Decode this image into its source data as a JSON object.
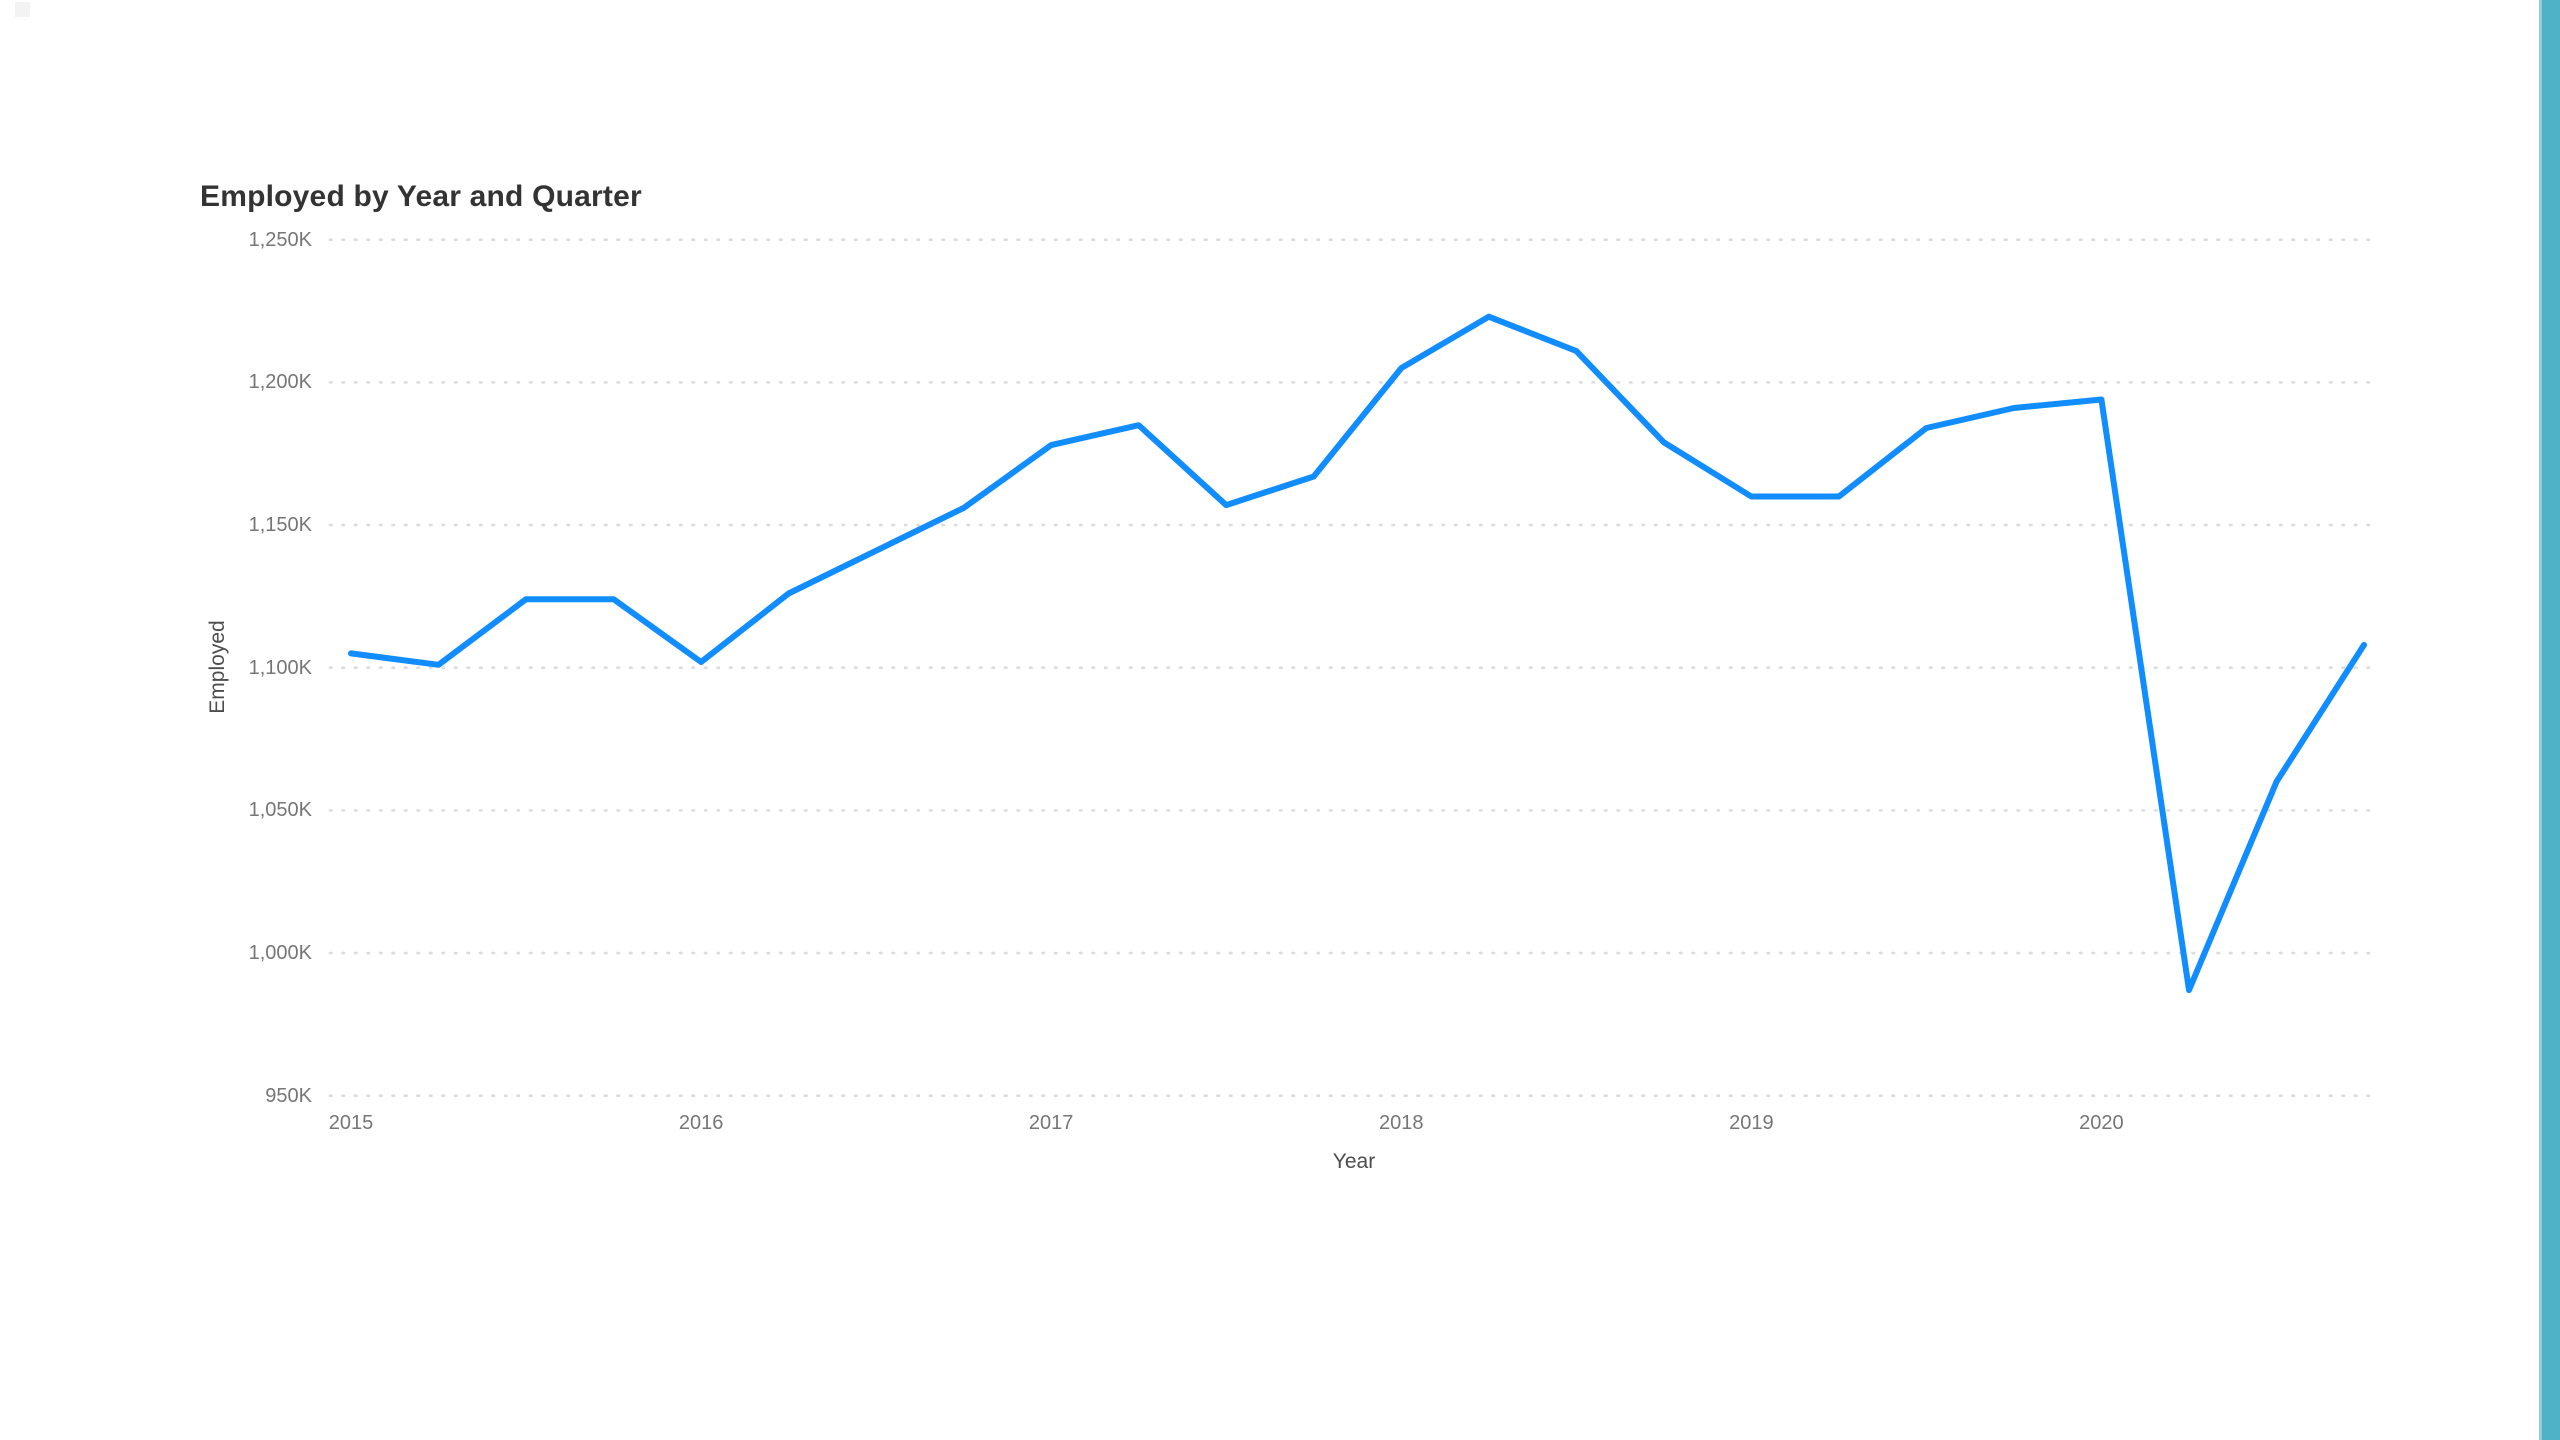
{
  "page": {
    "background": "#ffffff",
    "right_accent_bar_color": "#4fb2c6",
    "corner_artifact_color": "#f4f3f3"
  },
  "chart": {
    "title": "Employed by Year and Quarter",
    "x_axis_title": "Year",
    "y_axis_title": "Employed"
  },
  "chart_data": {
    "type": "line",
    "title": "Employed by Year and Quarter",
    "xlabel": "Year",
    "ylabel": "Employed",
    "units": "thousands (K)",
    "legend": "none",
    "grid": "horizontal-dotted",
    "grid_color": "#dcdcdc",
    "line_color": "#118DFF",
    "line_width": 6,
    "categories": [
      "2015 Q1",
      "2015 Q2",
      "2015 Q3",
      "2015 Q4",
      "2016 Q1",
      "2016 Q2",
      "2016 Q3",
      "2016 Q4",
      "2017 Q1",
      "2017 Q2",
      "2017 Q3",
      "2017 Q4",
      "2018 Q1",
      "2018 Q2",
      "2018 Q3",
      "2018 Q4",
      "2019 Q1",
      "2019 Q2",
      "2019 Q3",
      "2019 Q4",
      "2020 Q1",
      "2020 Q2",
      "2020 Q3",
      "2020 Q4"
    ],
    "values_k": [
      1105,
      1101,
      1124,
      1124,
      1102,
      1126,
      1141,
      1156,
      1178,
      1185,
      1157,
      1167,
      1205,
      1223,
      1211,
      1179,
      1160,
      1160,
      1184,
      1191,
      1194,
      987,
      1060,
      1108
    ],
    "x_tick_labels": [
      "2015",
      "2016",
      "2017",
      "2018",
      "2019",
      "2020"
    ],
    "y_tick_labels": [
      "1,250K",
      "1,200K",
      "1,150K",
      "1,100K",
      "1,050K",
      "1,000K",
      "950K"
    ],
    "y_tick_values_k": [
      1250,
      1200,
      1150,
      1100,
      1050,
      1000,
      950
    ],
    "ylim_k": [
      950,
      1250
    ]
  }
}
